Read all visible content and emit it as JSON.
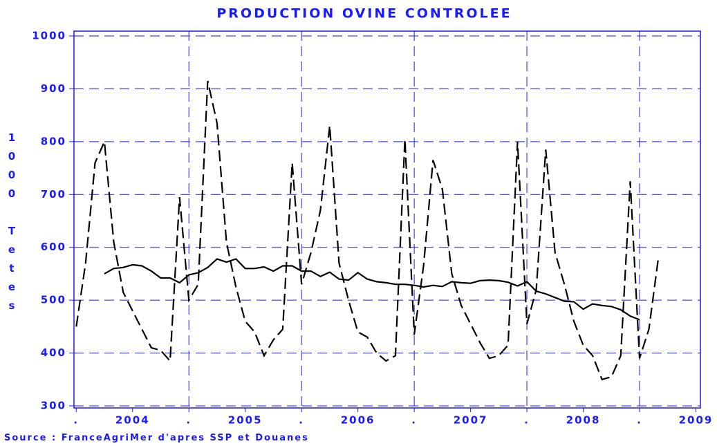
{
  "chart_data": {
    "type": "line",
    "title": "PRODUCTION OVINE CONTROLEE",
    "y_label": "1000 Tetes",
    "source": "Source : FranceAgriMer d'apres SSP et Douanes",
    "x": [
      2004,
      2004.083,
      2004.167,
      2004.25,
      2004.333,
      2004.417,
      2004.5,
      2004.583,
      2004.667,
      2004.75,
      2004.833,
      2004.917,
      2005,
      2005.083,
      2005.167,
      2005.25,
      2005.333,
      2005.417,
      2005.5,
      2005.583,
      2005.667,
      2005.75,
      2005.833,
      2005.917,
      2006,
      2006.083,
      2006.167,
      2006.25,
      2006.333,
      2006.417,
      2006.5,
      2006.583,
      2006.667,
      2006.75,
      2006.833,
      2006.917,
      2007,
      2007.083,
      2007.167,
      2007.25,
      2007.333,
      2007.417,
      2007.5,
      2007.583,
      2007.667,
      2007.75,
      2007.833,
      2007.917,
      2008,
      2008.083,
      2008.167,
      2008.25,
      2008.333,
      2008.417,
      2008.5,
      2008.583,
      2008.667,
      2008.75,
      2008.833,
      2008.917,
      2009,
      2009.083,
      2009.167
    ],
    "series": [
      {
        "color": "#000000",
        "dash": true,
        "values": [
          450,
          570,
          760,
          800,
          610,
          515,
          480,
          445,
          410,
          405,
          385,
          695,
          500,
          530,
          915,
          835,
          610,
          525,
          460,
          440,
          395,
          425,
          445,
          760,
          530,
          590,
          670,
          830,
          570,
          500,
          440,
          430,
          400,
          385,
          395,
          805,
          435,
          565,
          765,
          710,
          550,
          490,
          455,
          420,
          390,
          395,
          415,
          800,
          455,
          520,
          785,
          590,
          530,
          460,
          415,
          395,
          350,
          355,
          395,
          725,
          390,
          445,
          580
        ]
      },
      {
        "color": "#000000",
        "dash": false,
        "values": [
          null,
          null,
          null,
          550,
          560,
          562,
          567,
          565,
          555,
          542,
          542,
          533,
          548,
          552,
          562,
          578,
          572,
          578,
          560,
          560,
          563,
          555,
          565,
          565,
          555,
          555,
          545,
          553,
          540,
          538,
          552,
          540,
          535,
          533,
          530,
          530,
          528,
          525,
          528,
          526,
          535,
          533,
          532,
          537,
          538,
          537,
          534,
          527,
          535,
          517,
          512,
          505,
          498,
          497,
          483,
          493,
          490,
          488,
          482,
          470,
          463,
          null,
          null
        ]
      }
    ],
    "xlim": [
      2003.98,
      2009.54
    ],
    "xticks": [
      {
        "value": 2004,
        "label": "."
      },
      {
        "value": 2004.5,
        "label": "2004"
      },
      {
        "value": 2005,
        "label": "."
      },
      {
        "value": 2005.5,
        "label": "2005"
      },
      {
        "value": 2006,
        "label": "."
      },
      {
        "value": 2006.5,
        "label": "2006"
      },
      {
        "value": 2007,
        "label": "."
      },
      {
        "value": 2007.5,
        "label": "2007"
      },
      {
        "value": 2008,
        "label": "."
      },
      {
        "value": 2008.5,
        "label": "2008"
      },
      {
        "value": 2009,
        "label": "."
      },
      {
        "value": 2009.5,
        "label": "2009"
      }
    ],
    "xgrid": [
      2005,
      2006,
      2007,
      2008,
      2009
    ],
    "ylim": [
      300,
      1000
    ],
    "yticks": [
      300,
      400,
      500,
      600,
      700,
      800,
      900,
      1000
    ],
    "grid": true,
    "axis_color": "#1a1aff"
  }
}
